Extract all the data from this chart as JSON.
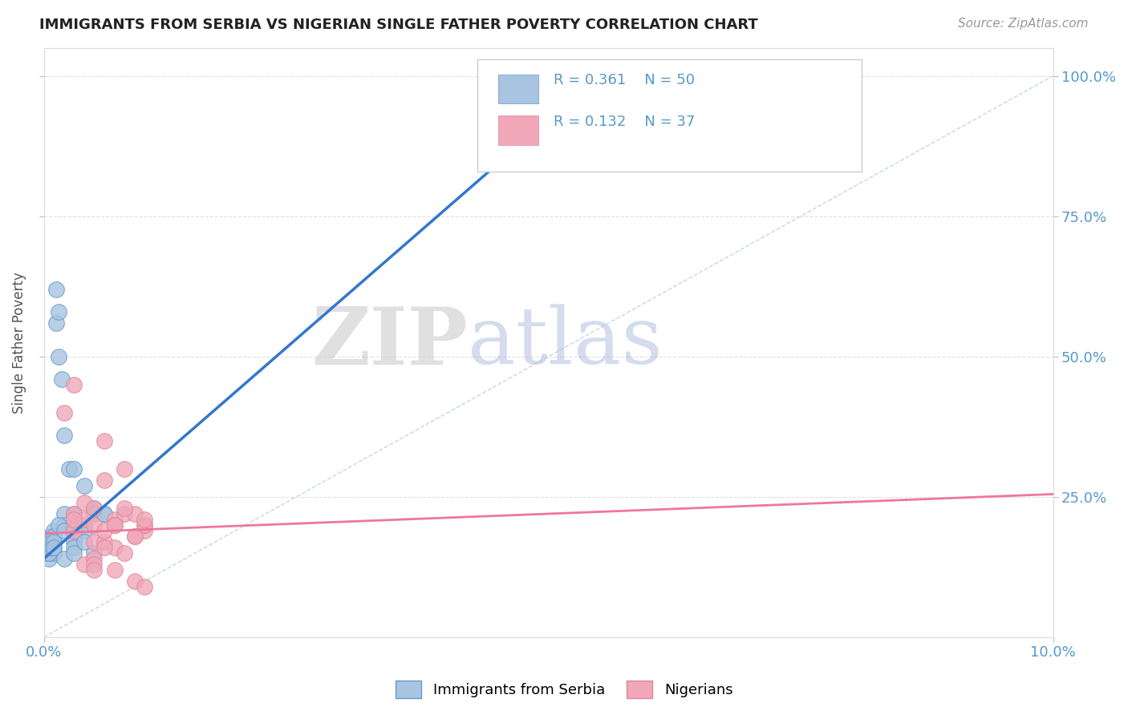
{
  "title": "IMMIGRANTS FROM SERBIA VS NIGERIAN SINGLE FATHER POVERTY CORRELATION CHART",
  "source_text": "Source: ZipAtlas.com",
  "ylabel": "Single Father Poverty",
  "watermark_zip": "ZIP",
  "watermark_atlas": "atlas",
  "legend_r1": "R = 0.361",
  "legend_n1": "N = 50",
  "legend_r2": "R = 0.132",
  "legend_n2": "N = 37",
  "blue_color": "#A8C4E0",
  "pink_color": "#F0A8B8",
  "blue_line_color": "#3377CC",
  "pink_line_color": "#EE7799",
  "diag_color": "#BBCCDD",
  "background_color": "#FFFFFF",
  "grid_color": "#DDDDDD",
  "tick_label_color": "#5599CC",
  "title_color": "#222222",
  "source_color": "#999999",
  "ylabel_color": "#555555",
  "blue_trend_x": [
    0.0,
    0.055
  ],
  "blue_trend_y": [
    0.14,
    1.0
  ],
  "pink_trend_x": [
    0.0,
    0.1
  ],
  "pink_trend_y": [
    0.185,
    0.255
  ],
  "serbia_x": [
    0.0003,
    0.0003,
    0.0005,
    0.0005,
    0.0005,
    0.0007,
    0.0008,
    0.001,
    0.001,
    0.001,
    0.001,
    0.0012,
    0.0012,
    0.0015,
    0.0015,
    0.0018,
    0.002,
    0.002,
    0.002,
    0.0025,
    0.003,
    0.003,
    0.003,
    0.003,
    0.004,
    0.004,
    0.004,
    0.005,
    0.005,
    0.006,
    0.0002,
    0.0003,
    0.0004,
    0.0004,
    0.0005,
    0.0005,
    0.0006,
    0.0007,
    0.0008,
    0.001,
    0.001,
    0.001,
    0.0015,
    0.002,
    0.002,
    0.003,
    0.003,
    0.004,
    0.005,
    0.006
  ],
  "serbia_y": [
    0.17,
    0.16,
    0.16,
    0.15,
    0.14,
    0.18,
    0.17,
    0.19,
    0.17,
    0.16,
    0.15,
    0.62,
    0.56,
    0.5,
    0.58,
    0.46,
    0.36,
    0.22,
    0.2,
    0.3,
    0.3,
    0.22,
    0.18,
    0.17,
    0.27,
    0.2,
    0.19,
    0.23,
    0.22,
    0.22,
    0.17,
    0.17,
    0.16,
    0.15,
    0.16,
    0.15,
    0.16,
    0.17,
    0.16,
    0.18,
    0.17,
    0.16,
    0.2,
    0.19,
    0.14,
    0.16,
    0.15,
    0.17,
    0.15,
    0.22
  ],
  "nigeria_x": [
    0.003,
    0.003,
    0.004,
    0.005,
    0.005,
    0.006,
    0.006,
    0.007,
    0.007,
    0.008,
    0.008,
    0.009,
    0.01,
    0.01,
    0.002,
    0.003,
    0.004,
    0.005,
    0.006,
    0.007,
    0.008,
    0.009,
    0.01,
    0.003,
    0.004,
    0.005,
    0.006,
    0.007,
    0.008,
    0.009,
    0.01,
    0.005,
    0.005,
    0.006,
    0.007,
    0.009,
    0.01
  ],
  "nigeria_y": [
    0.22,
    0.19,
    0.21,
    0.2,
    0.17,
    0.35,
    0.28,
    0.21,
    0.2,
    0.3,
    0.22,
    0.18,
    0.19,
    0.2,
    0.4,
    0.45,
    0.13,
    0.14,
    0.17,
    0.16,
    0.15,
    0.22,
    0.2,
    0.21,
    0.24,
    0.23,
    0.19,
    0.2,
    0.23,
    0.18,
    0.21,
    0.13,
    0.12,
    0.16,
    0.12,
    0.1,
    0.09
  ],
  "xlim": [
    0.0,
    0.1
  ],
  "ylim": [
    0.0,
    1.05
  ],
  "yticks": [
    0.25,
    0.5,
    0.75,
    1.0
  ],
  "ytick_labels": [
    "25.0%",
    "50.0%",
    "75.0%",
    "100.0%"
  ],
  "xtick_positions": [
    0.0,
    0.1
  ],
  "xtick_labels": [
    "0.0%",
    "10.0%"
  ],
  "legend1_label": "Immigrants from Serbia",
  "legend2_label": "Nigerians"
}
